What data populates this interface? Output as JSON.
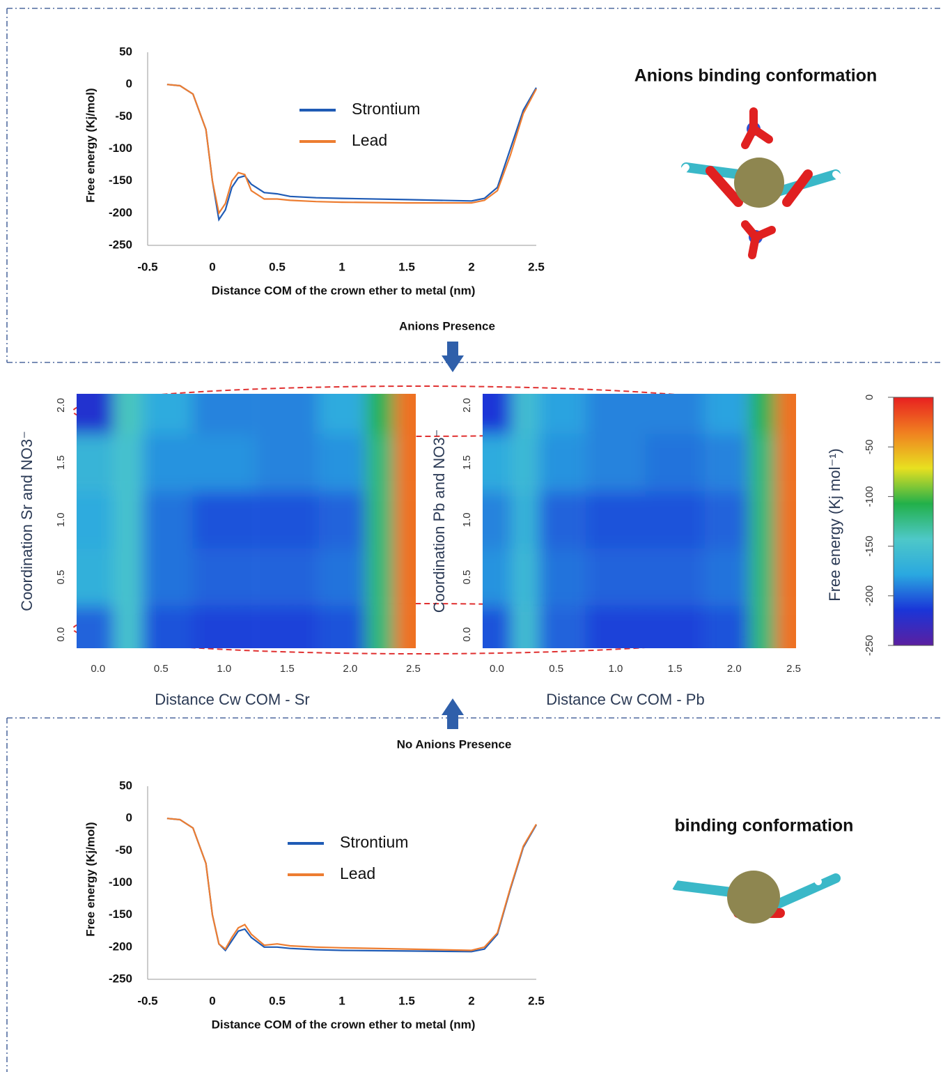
{
  "labels": {
    "anions_title": "Anions binding conformation",
    "binding_title": "binding conformation",
    "anions_presence": "Anions Presence",
    "no_anions_presence": "No Anions Presence"
  },
  "chart_data": [
    {
      "type": "line",
      "xlabel": "Distance COM of the crown ether to metal (nm)",
      "ylabel": "Free energy (Kj/mol)",
      "x": [
        -0.35,
        -0.25,
        -0.15,
        -0.05,
        0,
        0.05,
        0.1,
        0.15,
        0.2,
        0.25,
        0.3,
        0.4,
        0.5,
        0.6,
        0.8,
        1,
        1.5,
        2,
        2.1,
        2.2,
        2.3,
        2.4,
        2.5
      ],
      "series": [
        {
          "name": "Strontium",
          "color": "#1f5bb5",
          "values": [
            0,
            -2,
            -15,
            -70,
            -150,
            -210,
            -195,
            -160,
            -145,
            -142,
            -155,
            -168,
            -170,
            -174,
            -176,
            -177,
            -179,
            -181,
            -177,
            -160,
            -100,
            -40,
            -5
          ]
        },
        {
          "name": "Lead",
          "color": "#ed7d31",
          "values": [
            0,
            -2,
            -15,
            -70,
            -150,
            -200,
            -185,
            -150,
            -137,
            -140,
            -165,
            -178,
            -178,
            -180,
            -182,
            -183,
            -184,
            -184,
            -180,
            -165,
            -110,
            -45,
            -7
          ]
        }
      ],
      "xlim": [
        -0.5,
        2.5
      ],
      "xticks": [
        -0.5,
        0,
        0.5,
        1,
        1.5,
        2,
        2.5
      ],
      "ylim": [
        -250,
        50
      ],
      "yticks": [
        50,
        0,
        -50,
        -100,
        -150,
        -200,
        -250
      ]
    },
    {
      "type": "heatmap",
      "xlabel": "Distance Cw COM - Sr",
      "ylabel": "Coordination Sr and NO3⁻",
      "x": [
        0.05,
        0.2,
        0.5,
        1,
        1.5,
        2,
        2.25,
        2.45
      ],
      "y": [
        0,
        0.5,
        1,
        1.5,
        2
      ],
      "z": [
        [
          -200,
          -150,
          -205,
          -210,
          -210,
          -205,
          -120,
          -30
        ],
        [
          -170,
          -150,
          -195,
          -200,
          -200,
          -195,
          -120,
          -30
        ],
        [
          -175,
          -150,
          -195,
          -205,
          -205,
          -200,
          -120,
          -30
        ],
        [
          -165,
          -150,
          -185,
          -185,
          -190,
          -185,
          -120,
          -30
        ],
        [
          -220,
          -140,
          -175,
          -190,
          -190,
          -175,
          -110,
          -30
        ]
      ],
      "xlim": [
        -0.17,
        2.52
      ],
      "ylim": [
        -0.12,
        2.1
      ],
      "xticks": [
        {
          "value": 0,
          "label": "0.0"
        },
        0.5,
        {
          "value": 1,
          "label": "1.0"
        },
        1.5,
        {
          "value": 2,
          "label": "2.0"
        },
        2.5
      ],
      "yticks": [
        {
          "value": 0,
          "label": "0.0"
        },
        0.5,
        {
          "value": 1,
          "label": "1.0"
        },
        1.5,
        {
          "value": 2,
          "label": "2.0"
        }
      ]
    },
    {
      "type": "heatmap",
      "xlabel": "Distance Cw COM - Pb",
      "ylabel": "Coordination Pb and NO3⁻",
      "x": [
        0.05,
        0.2,
        0.5,
        1,
        1.5,
        2,
        2.25,
        2.45
      ],
      "y": [
        0,
        0.5,
        1,
        1.5,
        2
      ],
      "z": [
        [
          -205,
          -155,
          -200,
          -210,
          -210,
          -205,
          -120,
          -30
        ],
        [
          -185,
          -160,
          -195,
          -200,
          -200,
          -195,
          -120,
          -30
        ],
        [
          -190,
          -165,
          -200,
          -205,
          -205,
          -200,
          -120,
          -30
        ],
        [
          -175,
          -160,
          -185,
          -190,
          -195,
          -190,
          -120,
          -30
        ],
        [
          -215,
          -155,
          -180,
          -190,
          -190,
          -180,
          -110,
          -30
        ]
      ],
      "xlim": [
        -0.12,
        2.52
      ],
      "ylim": [
        -0.12,
        2.1
      ],
      "xticks": [
        {
          "value": 0,
          "label": "0.0"
        },
        0.5,
        {
          "value": 1,
          "label": "1.0"
        },
        1.5,
        {
          "value": 2,
          "label": "2.0"
        },
        2.5
      ],
      "yticks": [
        {
          "value": 0,
          "label": "0.0"
        },
        0.5,
        {
          "value": 1,
          "label": "1.0"
        },
        1.5,
        {
          "value": 2,
          "label": "2.0"
        }
      ]
    },
    {
      "type": "colorbar",
      "label": "Free energy (Kj mol⁻¹)",
      "zlim": [
        -250,
        0
      ],
      "ticks": [
        0,
        -50,
        -100,
        -150,
        -200,
        -250
      ],
      "colors": [
        "#5b1fa0",
        "#1a35d8",
        "#2aa8e0",
        "#4ec8c8",
        "#22b04a",
        "#e8e020",
        "#f08020",
        "#e82020"
      ]
    },
    {
      "type": "line",
      "xlabel": "Distance COM of the crown ether to metal (nm)",
      "ylabel": "Free energy (Kj/mol)",
      "x": [
        -0.35,
        -0.25,
        -0.15,
        -0.05,
        0,
        0.05,
        0.1,
        0.15,
        0.2,
        0.25,
        0.3,
        0.4,
        0.5,
        0.6,
        0.8,
        1,
        1.5,
        2,
        2.1,
        2.2,
        2.3,
        2.4,
        2.5
      ],
      "series": [
        {
          "name": "Strontium",
          "color": "#1f5bb5",
          "values": [
            0,
            -2,
            -15,
            -70,
            -150,
            -195,
            -205,
            -190,
            -175,
            -172,
            -185,
            -200,
            -200,
            -202,
            -204,
            -205,
            -206,
            -207,
            -203,
            -180,
            -110,
            -45,
            -10
          ]
        },
        {
          "name": "Lead",
          "color": "#ed7d31",
          "values": [
            0,
            -2,
            -15,
            -70,
            -150,
            -195,
            -203,
            -185,
            -170,
            -165,
            -180,
            -197,
            -195,
            -198,
            -200,
            -201,
            -203,
            -205,
            -200,
            -178,
            -108,
            -43,
            -9
          ]
        }
      ],
      "xlim": [
        -0.5,
        2.5
      ],
      "xticks": [
        -0.5,
        0,
        0.5,
        1,
        1.5,
        2,
        2.5
      ],
      "ylim": [
        -250,
        50
      ],
      "yticks": [
        50,
        0,
        -50,
        -100,
        -150,
        -200,
        -250
      ]
    }
  ]
}
